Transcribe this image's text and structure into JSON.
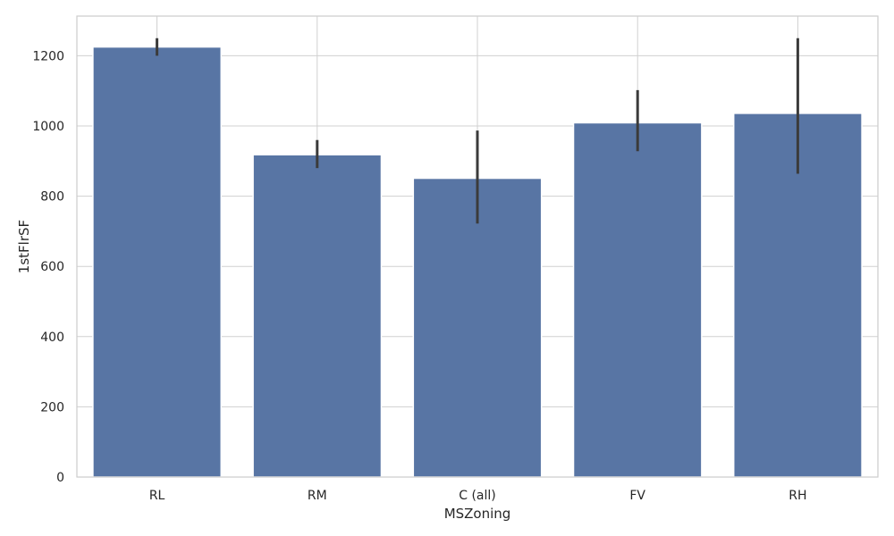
{
  "chart_data": {
    "type": "bar",
    "title": "",
    "xlabel": "MSZoning",
    "ylabel": "1stFlrSF",
    "categories": [
      "RL",
      "RM",
      "C (all)",
      "FV",
      "RH"
    ],
    "values": [
      1225,
      918,
      851,
      1009,
      1036
    ],
    "error_bars": [
      {
        "low": 1200,
        "high": 1250
      },
      {
        "low": 880,
        "high": 960
      },
      {
        "low": 722,
        "high": 987
      },
      {
        "low": 928,
        "high": 1102
      },
      {
        "low": 864,
        "high": 1250
      }
    ],
    "ylim": [
      0,
      1313
    ],
    "yticks": [
      0,
      200,
      400,
      600,
      800,
      1000,
      1200
    ],
    "ytick_labels": [
      "0",
      "200",
      "400",
      "600",
      "800",
      "1000",
      "1200"
    ],
    "grid": true,
    "legend": "none",
    "colors": {
      "bar": "#5875a4",
      "bar_edge": "#ffffff",
      "error": "#3b3b3b",
      "grid": "#d0d0d0",
      "frame": "#cccccc",
      "text": "#262626"
    }
  }
}
